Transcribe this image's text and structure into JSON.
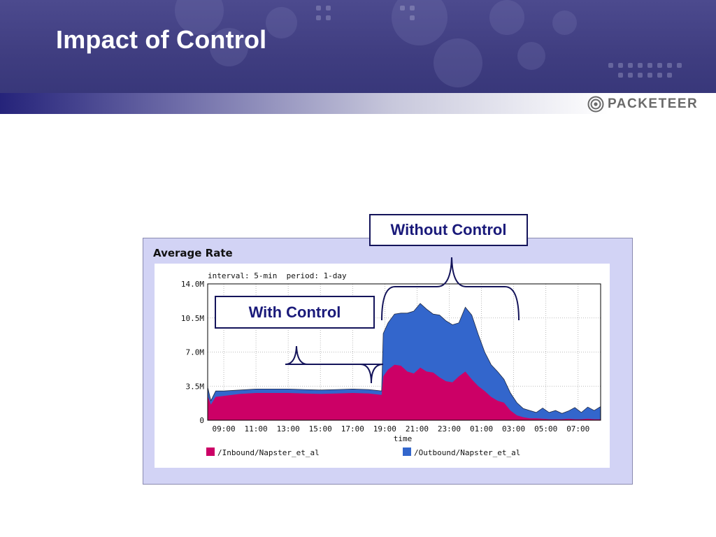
{
  "slide": {
    "title": "Impact of Control",
    "logo_text": "PACKETEER"
  },
  "colors": {
    "banner": "#3f3d80",
    "inbound": "#cc0066",
    "outbound": "#3366cc",
    "callout_text": "#1a1a7a",
    "panel": "#d2d3f5"
  },
  "callouts": {
    "without_control": "Without Control",
    "with_control": "With Control"
  },
  "chart_data": {
    "type": "area",
    "title": "Average Rate",
    "subtitle": "interval: 5-min  period: 1-day",
    "xlabel": "time",
    "ylabel": "",
    "ylim": [
      0,
      14.0
    ],
    "y_ticks": [
      "0",
      "3.5M",
      "7.0M",
      "10.5M",
      "14.0M"
    ],
    "y_tick_values": [
      0,
      3.5,
      7.0,
      10.5,
      14.0
    ],
    "x_ticks": [
      "09:00",
      "11:00",
      "13:00",
      "15:00",
      "17:00",
      "19:00",
      "21:00",
      "23:00",
      "01:00",
      "03:00",
      "05:00",
      "07:00"
    ],
    "x_tick_hours": [
      1,
      3,
      5,
      7,
      9,
      11,
      13,
      15,
      17,
      19,
      21,
      23
    ],
    "x_range_hours": [
      0,
      24.4
    ],
    "stacked": true,
    "legend_position": "bottom",
    "x_hours": [
      0,
      0.2,
      0.5,
      1,
      2,
      3,
      4,
      5,
      6,
      7,
      8,
      9,
      10,
      10.8,
      10.9,
      11.2,
      11.6,
      12,
      12.4,
      12.8,
      13.2,
      13.6,
      14,
      14.4,
      14.8,
      15.2,
      15.6,
      16,
      16.4,
      16.8,
      17.2,
      17.6,
      18,
      18.4,
      18.8,
      19.2,
      19.6,
      20,
      20.4,
      20.8,
      21.2,
      21.6,
      22,
      22.4,
      22.8,
      23.2,
      23.6,
      24,
      24.4
    ],
    "series": [
      {
        "name": "/Inbound/Napster_et_al",
        "values": [
          2.5,
          1.6,
          2.4,
          2.5,
          2.7,
          2.8,
          2.8,
          2.8,
          2.75,
          2.7,
          2.75,
          2.8,
          2.75,
          2.6,
          4.5,
          5.2,
          5.7,
          5.6,
          5.0,
          4.8,
          5.4,
          5.0,
          4.9,
          4.4,
          4.0,
          3.9,
          4.5,
          5.0,
          4.2,
          3.5,
          3.0,
          2.4,
          2.0,
          1.8,
          1.0,
          0.5,
          0.3,
          0.2,
          0.2,
          0.15,
          0.1,
          0.1,
          0.1,
          0.15,
          0.1,
          0.1,
          0.15,
          0.1,
          0.1
        ]
      },
      {
        "name": "/Outbound/Napster_et_al",
        "values": [
          0.9,
          0.4,
          0.6,
          0.5,
          0.4,
          0.4,
          0.4,
          0.4,
          0.4,
          0.4,
          0.4,
          0.4,
          0.4,
          0.4,
          4.4,
          4.8,
          5.2,
          5.4,
          6.0,
          6.4,
          6.6,
          6.4,
          6.0,
          6.4,
          6.2,
          5.9,
          5.5,
          6.6,
          6.6,
          5.3,
          4.0,
          3.3,
          3.0,
          2.4,
          1.8,
          1.3,
          0.9,
          0.8,
          0.6,
          1.1,
          0.7,
          0.9,
          0.6,
          0.8,
          1.2,
          0.7,
          1.2,
          0.9,
          1.3
        ]
      }
    ]
  }
}
